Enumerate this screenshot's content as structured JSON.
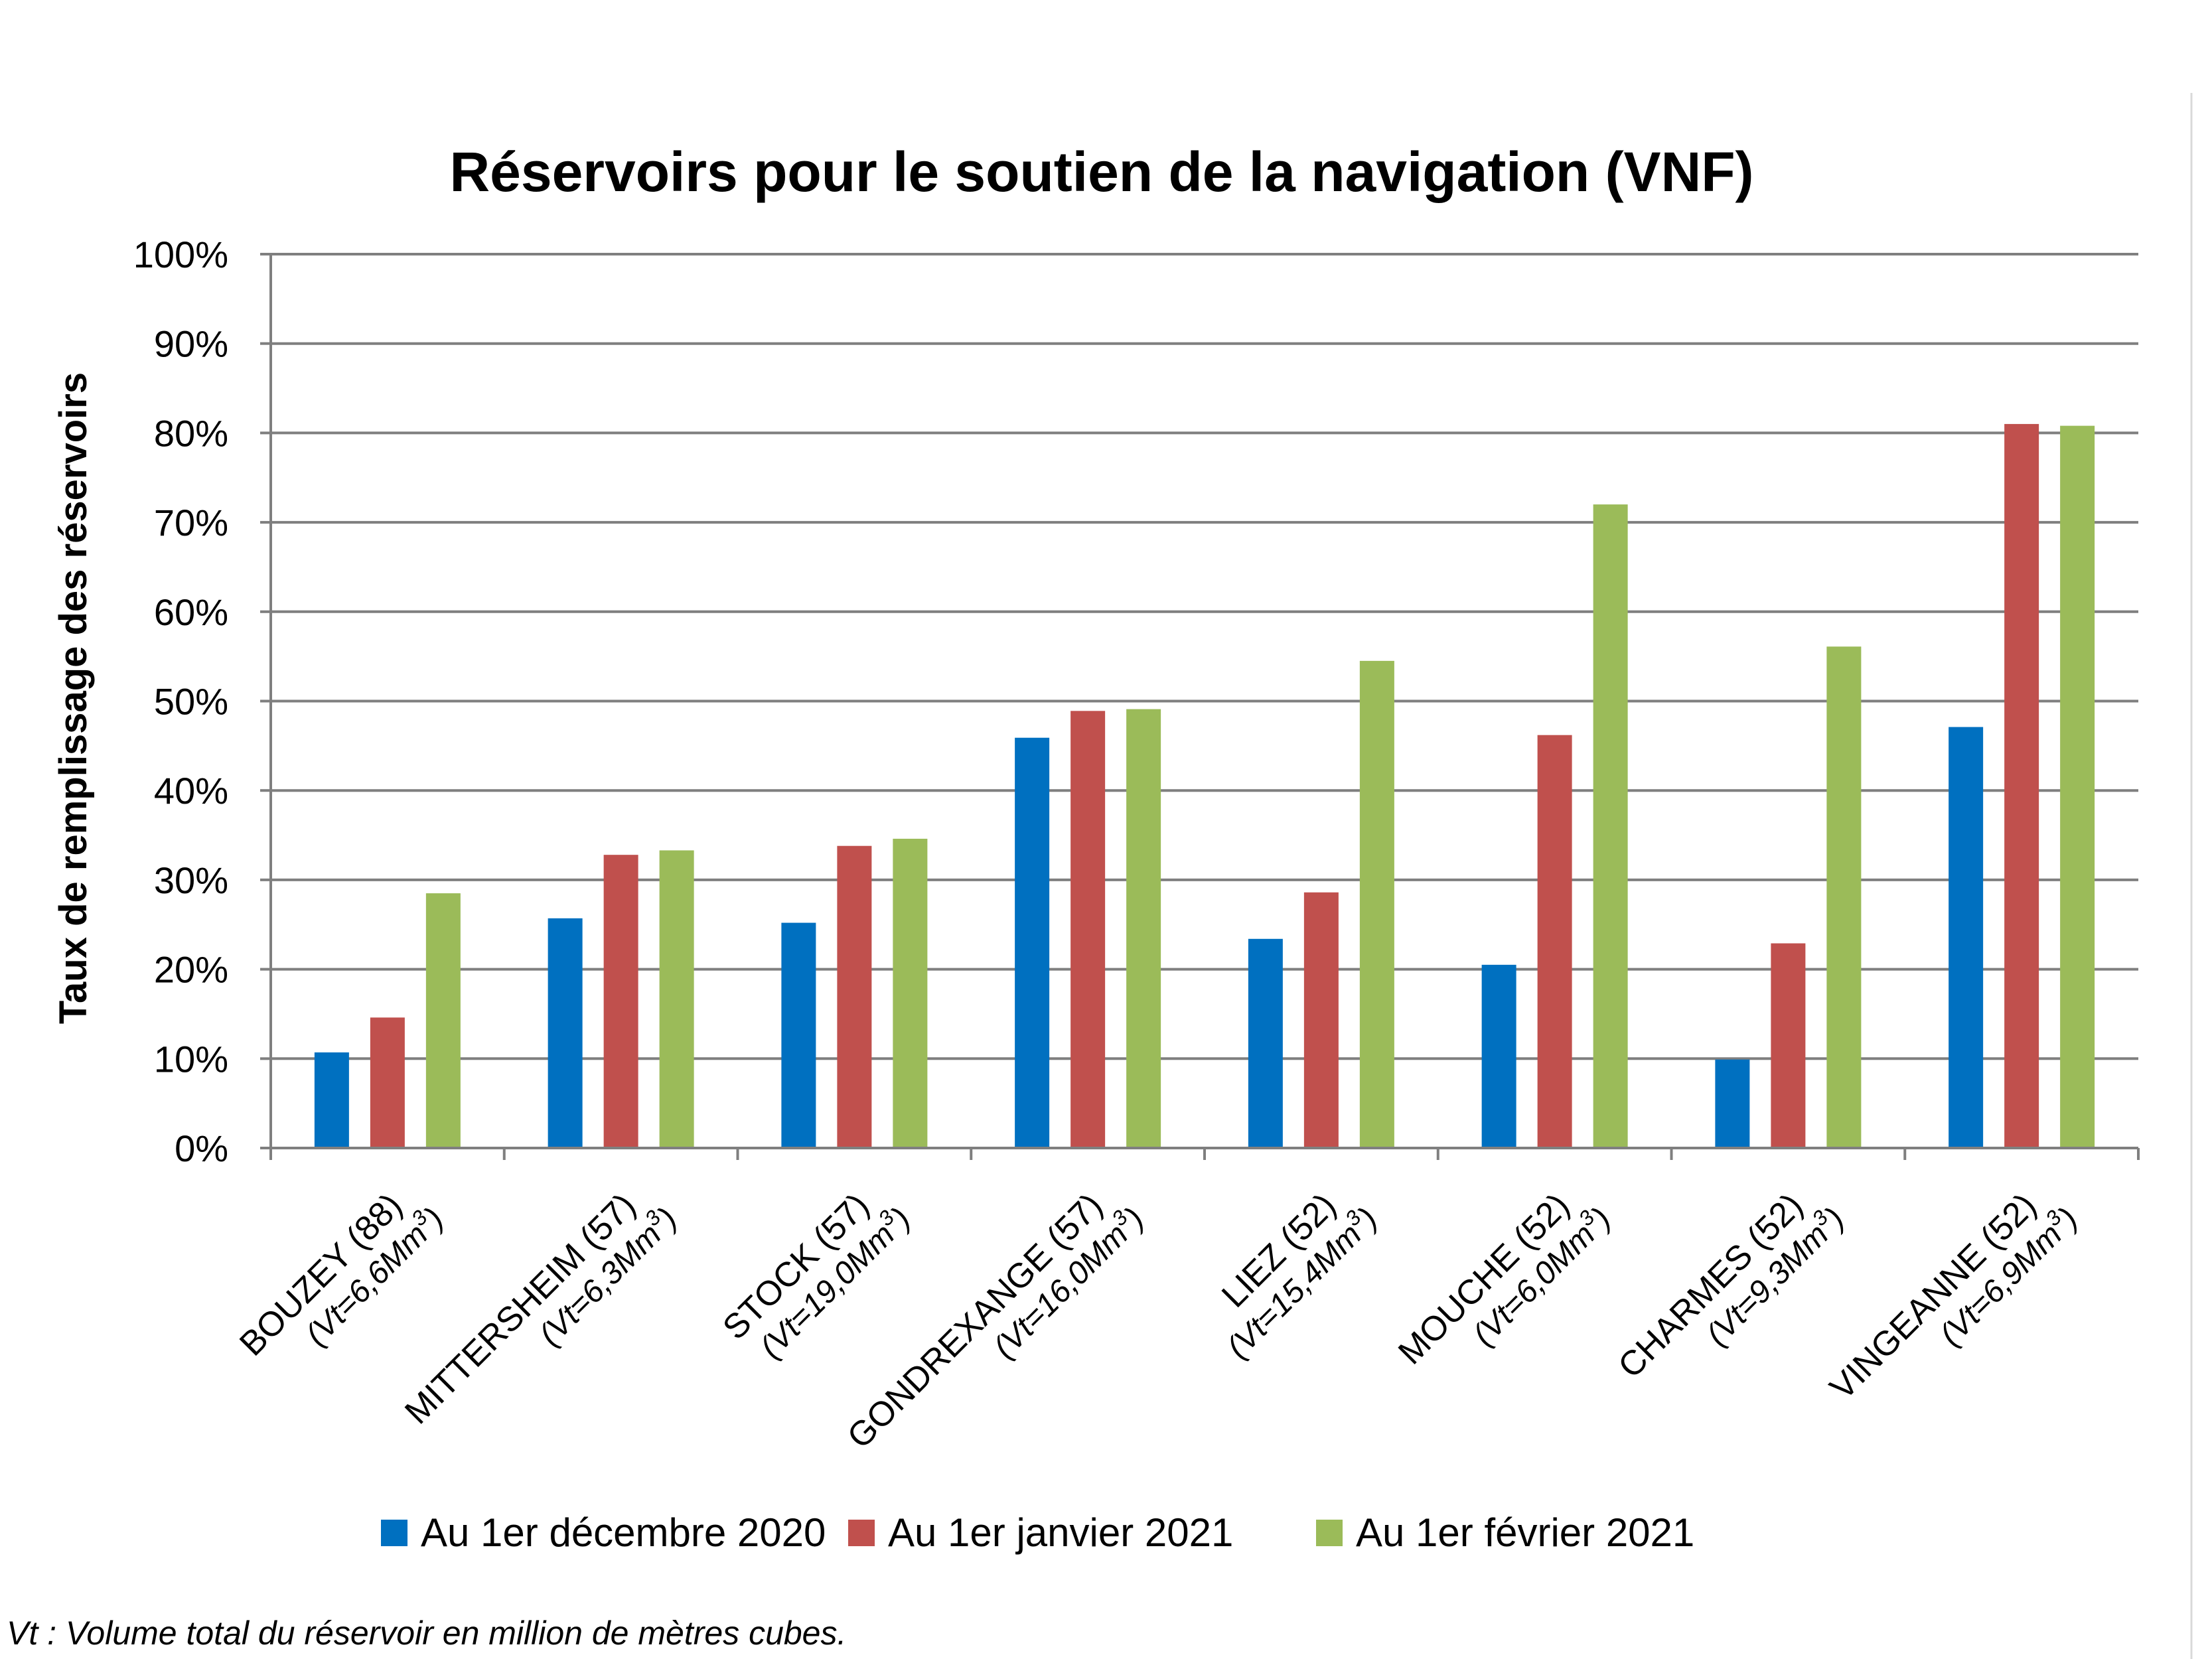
{
  "chart_data": {
    "type": "bar",
    "title": "Réservoirs pour le soutien de la navigation (VNF)",
    "ylabel": "Taux de remplissage des réservoirs",
    "xlabel": "",
    "ylim": [
      0,
      100
    ],
    "y_ticks": [
      "0%",
      "10%",
      "20%",
      "30%",
      "40%",
      "50%",
      "60%",
      "70%",
      "80%",
      "90%",
      "100%"
    ],
    "grid": true,
    "legend_position": "bottom",
    "categories": [
      {
        "name": "BOUZEY (88)",
        "vt_prefix": "(Vt=6,6Mm",
        "vt_sup": "3",
        "vt_suffix": ")"
      },
      {
        "name": "MITTERSHEIM (57)",
        "vt_prefix": "(Vt=6,3Mm",
        "vt_sup": "3",
        "vt_suffix": ")"
      },
      {
        "name": "STOCK (57)",
        "vt_prefix": "(Vt=19,0Mm",
        "vt_sup": "3",
        "vt_suffix": ")"
      },
      {
        "name": "GONDREXANGE (57)",
        "vt_prefix": "(Vt=16,0Mm",
        "vt_sup": "3",
        "vt_suffix": ")"
      },
      {
        "name": "LIEZ (52)",
        "vt_prefix": "(Vt=15,4Mm",
        "vt_sup": "3",
        "vt_suffix": ")"
      },
      {
        "name": "MOUCHE (52)",
        "vt_prefix": "(Vt=6,0Mm",
        "vt_sup": "3",
        "vt_suffix": ")"
      },
      {
        "name": "CHARMES (52)",
        "vt_prefix": "(Vt=9,3Mm",
        "vt_sup": "3",
        "vt_suffix": ")"
      },
      {
        "name": "VINGEANNE (52)",
        "vt_prefix": "(Vt=6,9Mm",
        "vt_sup": "3",
        "vt_suffix": ")"
      }
    ],
    "series": [
      {
        "name": "Au 1er décembre 2020",
        "color": "#0070C0",
        "values": [
          10.7,
          25.7,
          25.2,
          45.9,
          23.4,
          20.5,
          9.9,
          47.1
        ]
      },
      {
        "name": "Au 1er janvier 2021",
        "color": "#C0504D",
        "values": [
          14.6,
          32.8,
          33.8,
          48.9,
          28.6,
          46.2,
          22.9,
          81.0
        ]
      },
      {
        "name": "Au 1er février 2021",
        "color": "#9BBB59",
        "values": [
          28.5,
          33.3,
          34.6,
          49.1,
          54.5,
          72.0,
          56.1,
          80.8
        ]
      }
    ],
    "footnote": "Vt : Volume total du réservoir en million de mètres cubes."
  }
}
